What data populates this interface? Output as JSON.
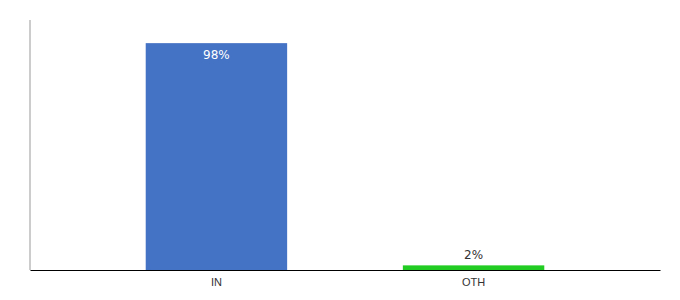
{
  "chart_data": {
    "type": "bar",
    "categories": [
      "IN",
      "OTH"
    ],
    "values": [
      98,
      2
    ],
    "colors": [
      "#4472C4",
      "#22CC22"
    ],
    "value_labels": [
      "98%",
      "2%"
    ],
    "data_labels": true,
    "ylim": [
      0,
      108
    ],
    "tick_labels": "x",
    "grid": false
  }
}
